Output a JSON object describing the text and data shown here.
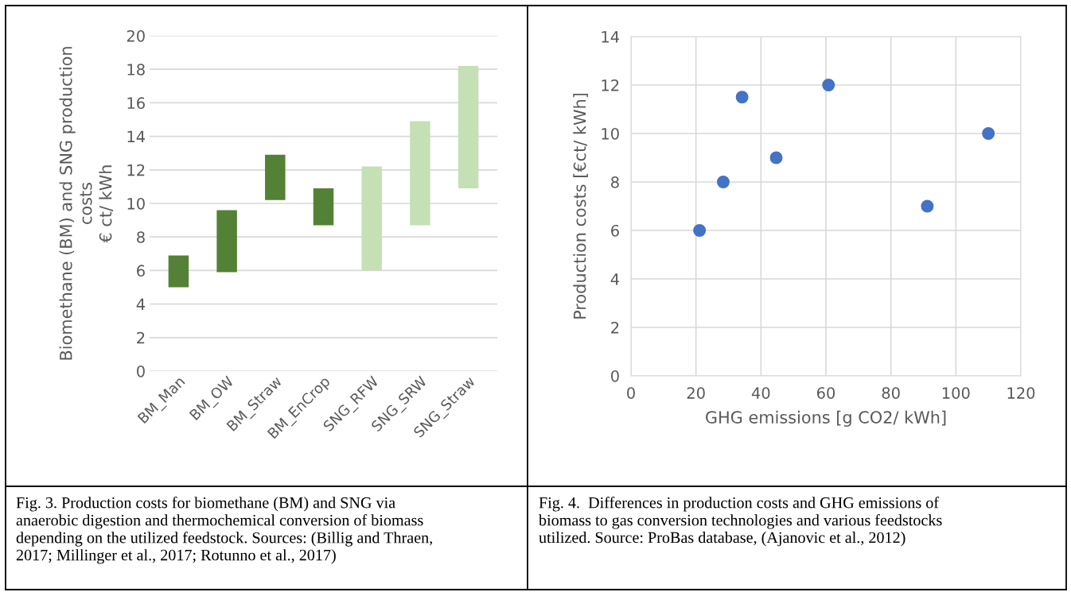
{
  "chart_data": [
    {
      "type": "bar",
      "ylabel": "Biomethane (BM) and SNG production\ncosts\n€ ct/ kWh",
      "categories": [
        "BM_Man",
        "BM_OW",
        "BM_Straw",
        "BM_EnCrop",
        "SNG_RFW",
        "SNG_SRW",
        "SNG_Straw"
      ],
      "base": [
        5.0,
        5.9,
        10.2,
        8.7,
        6.0,
        8.7,
        10.9
      ],
      "values": [
        1.9,
        3.7,
        2.7,
        2.2,
        6.2,
        6.2,
        7.3
      ],
      "colors": [
        "#538135",
        "#538135",
        "#538135",
        "#538135",
        "#c5e0b4",
        "#c5e0b4",
        "#c5e0b4"
      ],
      "ylim": [
        0,
        20
      ],
      "yticks": [
        0,
        2,
        4,
        6,
        8,
        10,
        12,
        14,
        16,
        18,
        20
      ],
      "grid": "y",
      "annotations": [
        "Fig. 3. Production costs for biomethane (BM) and SNG via\nanaerobic digestion and thermochemical conversion of biomass\ndepending on the utilized feedstock. Sources: (Billig and Thraen,\n2017; Millinger et al., 2017; Rotunno et al., 2017)"
      ]
    },
    {
      "type": "scatter",
      "xlabel": "GHG emissions [g CO2/ kWh]",
      "ylabel": "Production costs [€ct/ kWh]",
      "x": [
        21.1,
        28.4,
        34.2,
        44.7,
        60.8,
        91.2,
        110.0
      ],
      "values": [
        6,
        8,
        11.5,
        9,
        12,
        7,
        10
      ],
      "color": "#4472c4",
      "marker": "circle",
      "xlim": [
        0,
        120
      ],
      "xticks": [
        0,
        20,
        40,
        60,
        80,
        100,
        120
      ],
      "ylim": [
        0,
        14
      ],
      "yticks": [
        0,
        2,
        4,
        6,
        8,
        10,
        12,
        14
      ],
      "grid": true,
      "annotations": [
        "Fig. 4.  Differences in production costs and GHG emissions of\nbiomass to gas conversion technologies and various feedstocks\nutilized. Source: ProBas database, (Ajanovic et al., 2012)"
      ]
    }
  ]
}
